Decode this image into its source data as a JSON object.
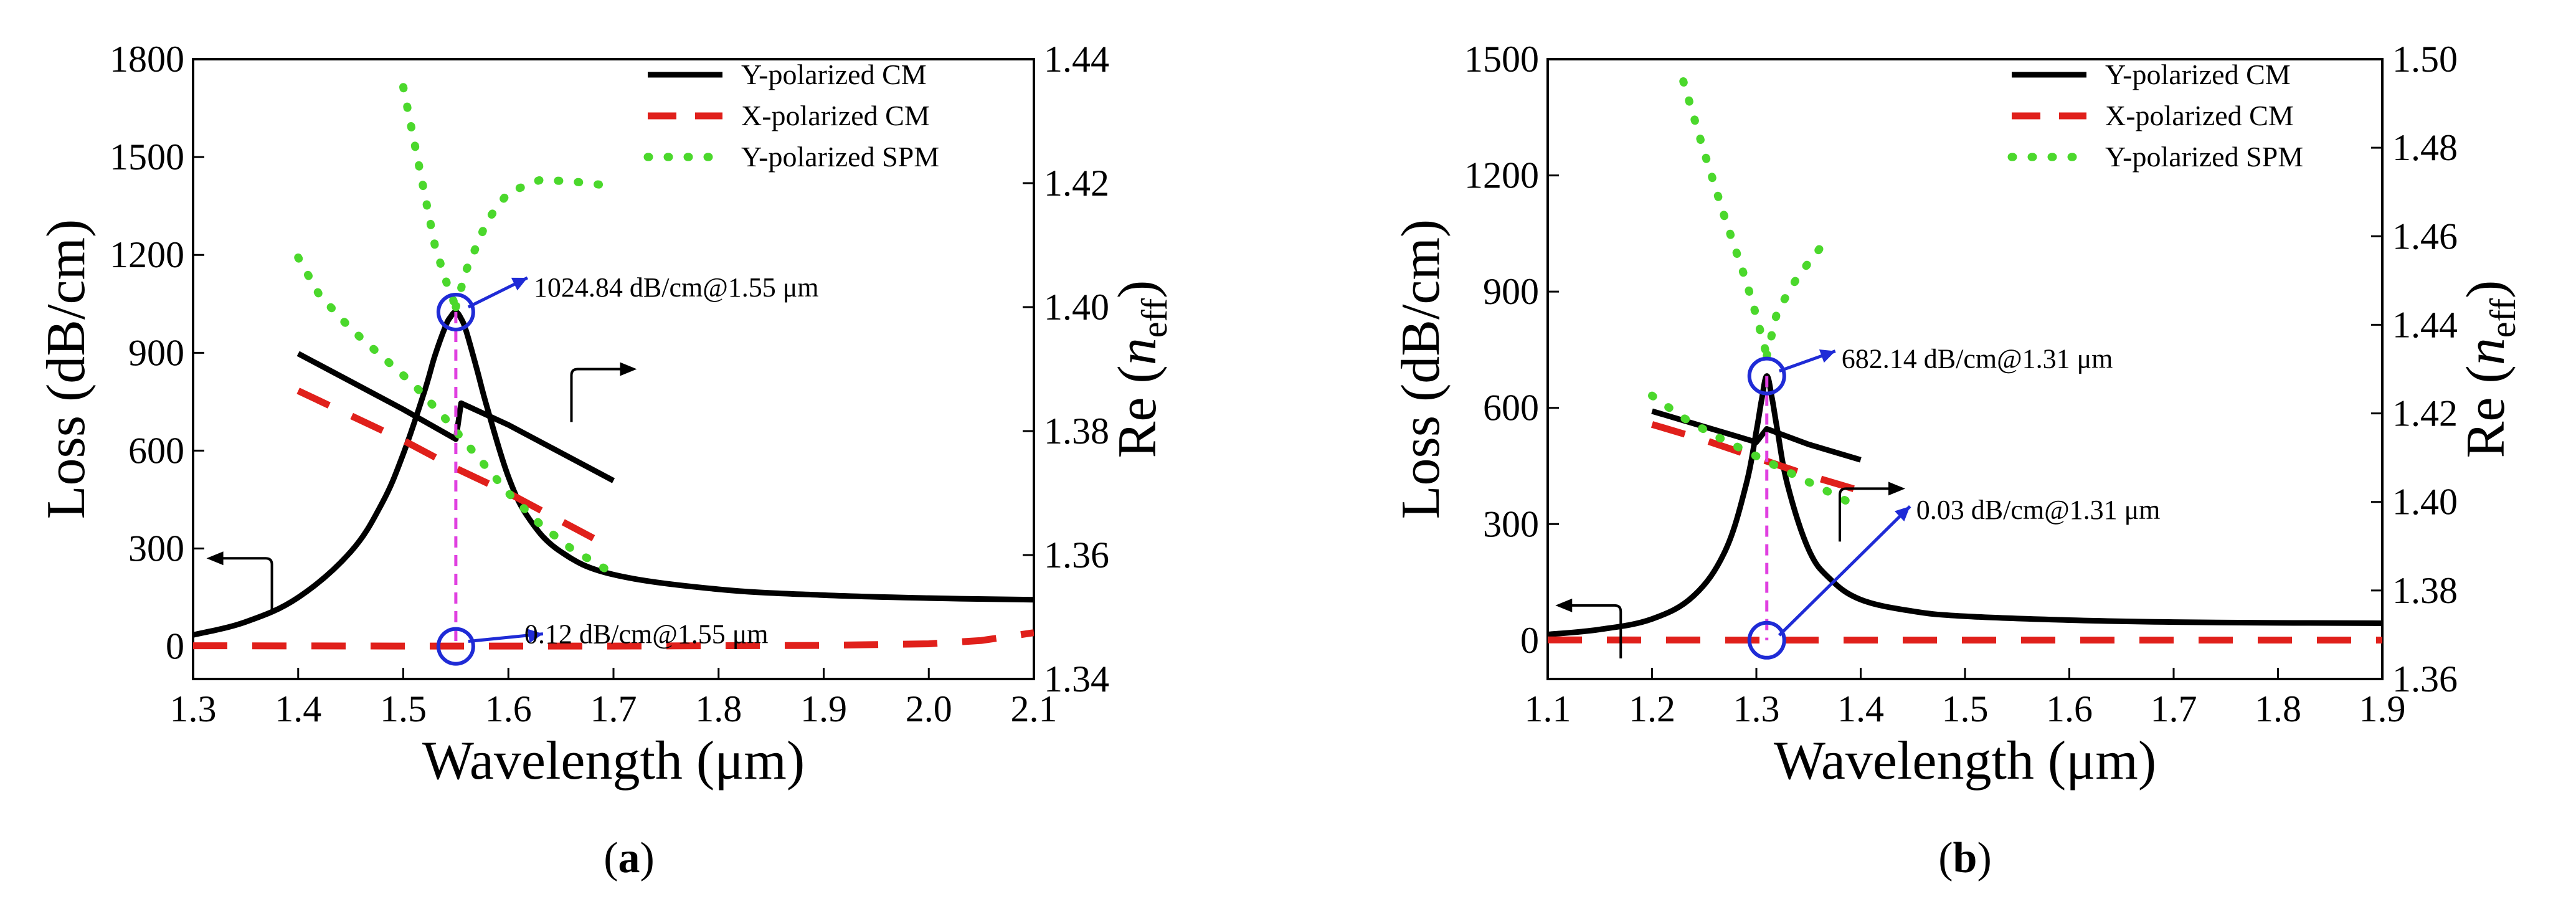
{
  "chart_data": [
    {
      "panel": "a",
      "caption": "(a)",
      "type": "line",
      "xlabel": "Wavelength (μm)",
      "ylabel": "Loss (dB/cm)",
      "y2label": "Re (n",
      "y2label_sub": "eff",
      "y2label_close": ")",
      "xlim": [
        1.3,
        2.1
      ],
      "ylim": [
        -100,
        1800
      ],
      "y2lim": [
        1.34,
        1.44
      ],
      "xticks": [
        "1.3",
        "1.4",
        "1.5",
        "1.6",
        "1.7",
        "1.8",
        "1.9",
        "2.0",
        "2.1"
      ],
      "yticks": [
        "0",
        "300",
        "600",
        "900",
        "1200",
        "1500",
        "1800"
      ],
      "y2ticks": [
        "1.34",
        "1.36",
        "1.38",
        "1.40",
        "1.42",
        "1.44"
      ],
      "legend": [
        {
          "label": "Y-polarized CM",
          "color": "#000000",
          "style": "solid"
        },
        {
          "label": "X-polarized CM",
          "color": "#e0201b",
          "style": "dashed"
        },
        {
          "label": "Y-polarized SPM",
          "color": "#4bd82c",
          "style": "dotted"
        }
      ],
      "series": [
        {
          "name": "Y-polarized CM loss",
          "axis": "left",
          "style": "solid",
          "color": "#000000",
          "x": [
            1.3,
            1.35,
            1.4,
            1.45,
            1.48,
            1.5,
            1.52,
            1.53,
            1.54,
            1.545,
            1.55,
            1.555,
            1.56,
            1.57,
            1.58,
            1.6,
            1.62,
            1.65,
            1.7,
            1.8,
            1.9,
            2.0,
            2.1
          ],
          "y": [
            35,
            75,
            150,
            290,
            440,
            590,
            780,
            890,
            980,
            1010,
            1025,
            1005,
            965,
            850,
            730,
            520,
            390,
            290,
            220,
            175,
            157,
            148,
            143
          ]
        },
        {
          "name": "X-polarized CM loss",
          "axis": "left",
          "style": "dashed",
          "color": "#e0201b",
          "x": [
            1.3,
            1.5,
            1.7,
            1.9,
            2.0,
            2.05,
            2.1
          ],
          "y": [
            2,
            1,
            1,
            3,
            8,
            18,
            42
          ]
        },
        {
          "name": "Y-polarized CM Re(neff)",
          "axis": "right",
          "style": "solid",
          "color": "#000000",
          "x": [
            1.4,
            1.45,
            1.5,
            1.55,
            1.555,
            1.6,
            1.65,
            1.7
          ],
          "y": [
            1.3925,
            1.388,
            1.3835,
            1.3787,
            1.3845,
            1.381,
            1.3765,
            1.372
          ]
        },
        {
          "name": "X-polarized CM Re(neff)",
          "axis": "right",
          "style": "dashed",
          "color": "#e0201b",
          "x": [
            1.4,
            1.45,
            1.5,
            1.55,
            1.6,
            1.65,
            1.7
          ],
          "y": [
            1.3865,
            1.3825,
            1.3785,
            1.374,
            1.37,
            1.3655,
            1.361
          ]
        },
        {
          "name": "Y-polarized SPM Re(neff)",
          "axis": "right",
          "style": "dotted",
          "color": "#4bd82c",
          "segments": [
            {
              "x": [
                1.5,
                1.51,
                1.52,
                1.53,
                1.54,
                1.55
              ],
              "y": [
                1.4355,
                1.427,
                1.4185,
                1.41,
                1.4045,
                1.4
              ]
            },
            {
              "x": [
                1.55,
                1.56,
                1.58,
                1.6,
                1.63,
                1.66,
                1.7
              ],
              "y": [
                1.4,
                1.406,
                1.414,
                1.4185,
                1.4205,
                1.4203,
                1.4195
              ]
            },
            {
              "x": [
                1.4,
                1.42,
                1.45,
                1.48,
                1.51,
                1.54,
                1.57,
                1.6,
                1.63,
                1.66,
                1.7
              ],
              "y": [
                1.408,
                1.402,
                1.3965,
                1.392,
                1.3875,
                1.382,
                1.376,
                1.37,
                1.365,
                1.361,
                1.357
              ]
            }
          ]
        }
      ],
      "annotations": [
        {
          "text": "1024.84 dB/cm@1.55 μm",
          "x": 1.55,
          "y": 1024.84
        },
        {
          "text": "0.12 dB/cm@1.55 μm",
          "x": 1.55,
          "y": 0.12
        }
      ],
      "arrows": [
        {
          "at_x": 1.375,
          "at_y": 270,
          "direction": "left"
        },
        {
          "at_x": 1.66,
          "at_y": 1.39,
          "axis": "right",
          "direction": "right"
        }
      ],
      "vline_x": 1.55
    },
    {
      "panel": "b",
      "caption": "(b)",
      "type": "line",
      "xlabel": "Wavelength (μm)",
      "ylabel": "Loss (dB/cm)",
      "y2label": "Re (n",
      "y2label_sub": "eff",
      "y2label_close": ")",
      "xlim": [
        1.1,
        1.9
      ],
      "ylim": [
        -100,
        1500
      ],
      "y2lim": [
        1.36,
        1.5
      ],
      "xticks": [
        "1.1",
        "1.2",
        "1.3",
        "1.4",
        "1.5",
        "1.6",
        "1.7",
        "1.8",
        "1.9"
      ],
      "yticks": [
        "0",
        "300",
        "600",
        "900",
        "1200",
        "1500"
      ],
      "y2ticks": [
        "1.36",
        "1.38",
        "1.40",
        "1.42",
        "1.44",
        "1.46",
        "1.48",
        "1.50"
      ],
      "legend": [
        {
          "label": "Y-polarized CM",
          "color": "#000000",
          "style": "solid"
        },
        {
          "label": "X-polarized CM",
          "color": "#e0201b",
          "style": "dashed"
        },
        {
          "label": "Y-polarized SPM",
          "color": "#4bd82c",
          "style": "dotted"
        }
      ],
      "series": [
        {
          "name": "Y-polarized CM loss",
          "axis": "left",
          "style": "solid",
          "color": "#000000",
          "x": [
            1.1,
            1.15,
            1.2,
            1.24,
            1.27,
            1.29,
            1.3,
            1.305,
            1.31,
            1.315,
            1.32,
            1.33,
            1.35,
            1.37,
            1.4,
            1.45,
            1.5,
            1.6,
            1.7,
            1.8,
            1.9
          ],
          "y": [
            15,
            28,
            55,
            115,
            230,
            400,
            540,
            620,
            682,
            625,
            545,
            400,
            235,
            160,
            105,
            75,
            62,
            52,
            47,
            45,
            44
          ]
        },
        {
          "name": "X-polarized CM loss",
          "axis": "left",
          "style": "dashed",
          "color": "#e0201b",
          "x": [
            1.1,
            1.3,
            1.5,
            1.7,
            1.9
          ],
          "y": [
            1,
            0.5,
            0.5,
            0.5,
            0.5
          ]
        },
        {
          "name": "Y-polarized CM Re(neff)",
          "axis": "right",
          "style": "solid",
          "color": "#000000",
          "x": [
            1.2,
            1.25,
            1.3,
            1.31,
            1.35,
            1.4
          ],
          "y": [
            1.4205,
            1.417,
            1.4135,
            1.4165,
            1.413,
            1.4095
          ]
        },
        {
          "name": "X-polarized CM Re(neff)",
          "axis": "right",
          "style": "dashed",
          "color": "#e0201b",
          "x": [
            1.2,
            1.25,
            1.3,
            1.35,
            1.4
          ],
          "y": [
            1.4175,
            1.414,
            1.41,
            1.406,
            1.4025
          ]
        },
        {
          "name": "Y-polarized SPM Re(neff)",
          "axis": "right",
          "style": "dotted",
          "color": "#4bd82c",
          "segments": [
            {
              "x": [
                1.23,
                1.25,
                1.27,
                1.29,
                1.3,
                1.31
              ],
              "y": [
                1.495,
                1.479,
                1.464,
                1.45,
                1.442,
                1.433
              ]
            },
            {
              "x": [
                1.31,
                1.32,
                1.34,
                1.37
              ],
              "y": [
                1.433,
                1.443,
                1.451,
                1.46
              ]
            },
            {
              "x": [
                1.2,
                1.23,
                1.26,
                1.29,
                1.32,
                1.35,
                1.38,
                1.4
              ],
              "y": [
                1.424,
                1.419,
                1.415,
                1.4115,
                1.408,
                1.4045,
                1.401,
                1.3985
              ]
            }
          ]
        }
      ],
      "annotations": [
        {
          "text": "682.14 dB/cm@1.31 μm",
          "x": 1.31,
          "y": 682.14
        },
        {
          "text": "0.03 dB/cm@1.31 μm",
          "x": 1.31,
          "y": 0.03
        }
      ],
      "arrows": [
        {
          "at_x": 1.17,
          "at_y": 90,
          "direction": "left"
        },
        {
          "at_x": 1.38,
          "at_y": 1.403,
          "axis": "right",
          "direction": "right"
        }
      ],
      "vline_x": 1.31
    }
  ]
}
